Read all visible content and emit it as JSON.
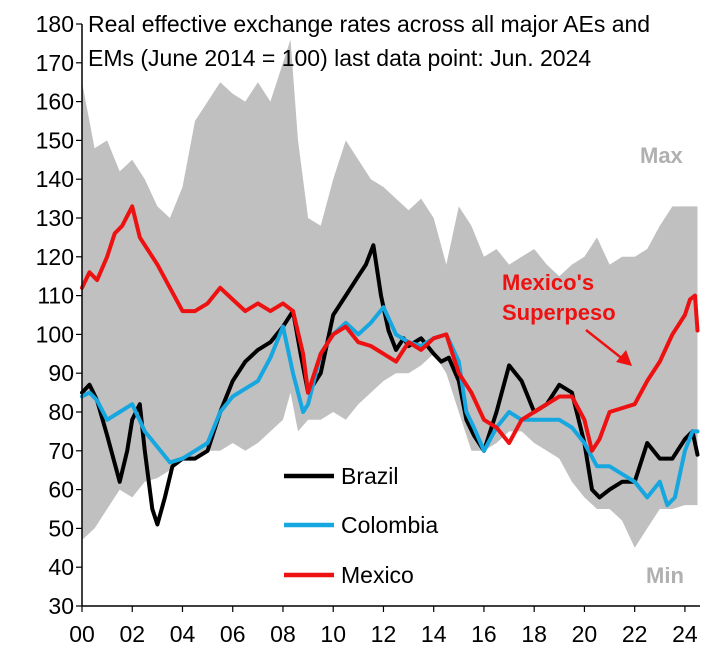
{
  "chart_data": {
    "type": "line",
    "title_lines": [
      "Real effective exchange rates across all major AEs and",
      "EMs (June 2014 = 100) last data point: Jun. 2024"
    ],
    "xlabel": "",
    "ylabel": "",
    "xlim": [
      2000,
      2024.6
    ],
    "ylim": [
      30,
      180
    ],
    "y_ticks": [
      30,
      40,
      50,
      60,
      70,
      80,
      90,
      100,
      110,
      120,
      130,
      140,
      150,
      160,
      170,
      180
    ],
    "x_ticks": [
      2000,
      2002,
      2004,
      2006,
      2008,
      2010,
      2012,
      2014,
      2016,
      2018,
      2020,
      2022,
      2024
    ],
    "x_tick_labels": [
      "00",
      "02",
      "04",
      "06",
      "08",
      "10",
      "12",
      "14",
      "16",
      "18",
      "20",
      "22",
      "24"
    ],
    "grid": false,
    "band": {
      "color": "#c0c0c0",
      "max_label": "Max",
      "min_label": "Min",
      "x": [
        2000,
        2000.5,
        2001,
        2001.5,
        2002,
        2002.5,
        2003,
        2003.5,
        2004,
        2004.5,
        2005,
        2005.5,
        2006,
        2006.5,
        2007,
        2007.5,
        2008,
        2008.3,
        2008.6,
        2009,
        2009.5,
        2010,
        2010.5,
        2011,
        2011.5,
        2012,
        2012.5,
        2013,
        2013.5,
        2014,
        2014.5,
        2015,
        2015.5,
        2016,
        2016.5,
        2017,
        2017.5,
        2018,
        2018.5,
        2019,
        2019.5,
        2020,
        2020.5,
        2021,
        2021.5,
        2022,
        2022.5,
        2023,
        2023.5,
        2024,
        2024.5
      ],
      "max": [
        165,
        148,
        150,
        142,
        145,
        140,
        133,
        130,
        138,
        155,
        160,
        165,
        162,
        160,
        165,
        160,
        170,
        176,
        150,
        130,
        128,
        140,
        150,
        145,
        140,
        138,
        135,
        132,
        135,
        130,
        118,
        133,
        128,
        120,
        122,
        118,
        120,
        122,
        118,
        115,
        118,
        120,
        125,
        118,
        120,
        120,
        122,
        128,
        133,
        133,
        133
      ],
      "min": [
        47,
        50,
        55,
        60,
        58,
        62,
        63,
        65,
        68,
        68,
        70,
        70,
        72,
        70,
        72,
        75,
        78,
        85,
        75,
        78,
        78,
        80,
        78,
        82,
        85,
        88,
        90,
        90,
        92,
        95,
        90,
        80,
        70,
        70,
        72,
        75,
        75,
        72,
        70,
        68,
        62,
        58,
        55,
        55,
        52,
        45,
        50,
        55,
        55,
        56,
        56
      ]
    },
    "series": [
      {
        "name": "Brazil",
        "color": "#000000",
        "x": [
          2000,
          2000.3,
          2000.6,
          2001,
          2001.5,
          2001.8,
          2002,
          2002.3,
          2002.5,
          2002.8,
          2003,
          2003.3,
          2003.6,
          2004,
          2004.5,
          2005,
          2005.5,
          2006,
          2006.5,
          2007,
          2007.5,
          2008,
          2008.4,
          2008.7,
          2009,
          2009.5,
          2010,
          2010.5,
          2011,
          2011.3,
          2011.6,
          2011.9,
          2012.2,
          2012.5,
          2012.8,
          2013,
          2013.5,
          2014,
          2014.3,
          2014.6,
          2015,
          2015.3,
          2015.6,
          2016,
          2016.5,
          2017,
          2017.5,
          2018,
          2018.5,
          2019,
          2019.5,
          2020,
          2020.3,
          2020.6,
          2021,
          2021.5,
          2022,
          2022.5,
          2023,
          2023.5,
          2024,
          2024.3,
          2024.5
        ],
        "y": [
          85,
          87,
          83,
          74,
          62,
          70,
          78,
          82,
          70,
          55,
          51,
          58,
          66,
          68,
          68,
          70,
          80,
          88,
          93,
          96,
          98,
          102,
          106,
          95,
          85,
          90,
          105,
          110,
          115,
          118,
          123,
          110,
          101,
          96,
          99,
          97,
          99,
          95,
          93,
          94,
          88,
          78,
          74,
          70,
          80,
          92,
          88,
          80,
          82,
          87,
          85,
          72,
          60,
          58,
          60,
          62,
          62,
          72,
          68,
          68,
          73,
          75,
          69
        ]
      },
      {
        "name": "Colombia",
        "color": "#17a7e0",
        "x": [
          2000,
          2000.3,
          2000.6,
          2001,
          2001.5,
          2002,
          2002.5,
          2003,
          2003.5,
          2004,
          2004.5,
          2005,
          2005.5,
          2006,
          2006.5,
          2007,
          2007.5,
          2008,
          2008.4,
          2008.8,
          2009,
          2009.5,
          2010,
          2010.5,
          2011,
          2011.5,
          2012,
          2012.5,
          2013,
          2013.5,
          2014,
          2014.5,
          2015,
          2015.3,
          2015.6,
          2016,
          2016.5,
          2017,
          2017.5,
          2018,
          2018.5,
          2019,
          2019.5,
          2020,
          2020.5,
          2021,
          2021.5,
          2022,
          2022.5,
          2023,
          2023.3,
          2023.6,
          2024,
          2024.3,
          2024.5
        ],
        "y": [
          84,
          85,
          83,
          78,
          80,
          82,
          75,
          71,
          67,
          68,
          70,
          72,
          80,
          84,
          86,
          88,
          94,
          102,
          90,
          80,
          82,
          95,
          100,
          103,
          100,
          103,
          107,
          100,
          98,
          97,
          99,
          100,
          93,
          80,
          76,
          70,
          76,
          80,
          78,
          78,
          78,
          78,
          76,
          72,
          66,
          66,
          64,
          62,
          58,
          62,
          56,
          58,
          70,
          75,
          75
        ]
      },
      {
        "name": "Mexico",
        "color": "#ee1111",
        "x": [
          2000,
          2000.3,
          2000.6,
          2001,
          2001.3,
          2001.6,
          2002,
          2002.3,
          2002.6,
          2003,
          2003.5,
          2004,
          2004.5,
          2005,
          2005.5,
          2006,
          2006.5,
          2007,
          2007.5,
          2008,
          2008.4,
          2008.8,
          2009,
          2009.5,
          2010,
          2010.5,
          2011,
          2011.5,
          2012,
          2012.5,
          2013,
          2013.5,
          2014,
          2014.5,
          2015,
          2015.5,
          2016,
          2016.5,
          2017,
          2017.5,
          2018,
          2018.5,
          2019,
          2019.5,
          2020,
          2020.3,
          2020.6,
          2021,
          2021.5,
          2022,
          2022.5,
          2023,
          2023.5,
          2024,
          2024.2,
          2024.4,
          2024.5
        ],
        "y": [
          112,
          116,
          114,
          120,
          126,
          128,
          133,
          125,
          122,
          118,
          112,
          106,
          106,
          108,
          112,
          109,
          106,
          108,
          106,
          108,
          106,
          95,
          85,
          95,
          100,
          102,
          98,
          97,
          95,
          93,
          98,
          96,
          99,
          100,
          90,
          85,
          78,
          76,
          72,
          78,
          80,
          82,
          84,
          84,
          78,
          70,
          73,
          80,
          81,
          82,
          88,
          93,
          100,
          105,
          109,
          110,
          101
        ]
      }
    ],
    "legend": {
      "position": "bottom-center",
      "entries": [
        "Brazil",
        "Colombia",
        "Mexico"
      ]
    },
    "annotations": {
      "superpeso_lines": [
        "Mexico's",
        "Superpeso"
      ],
      "superpeso_color": "#ee1111"
    }
  }
}
